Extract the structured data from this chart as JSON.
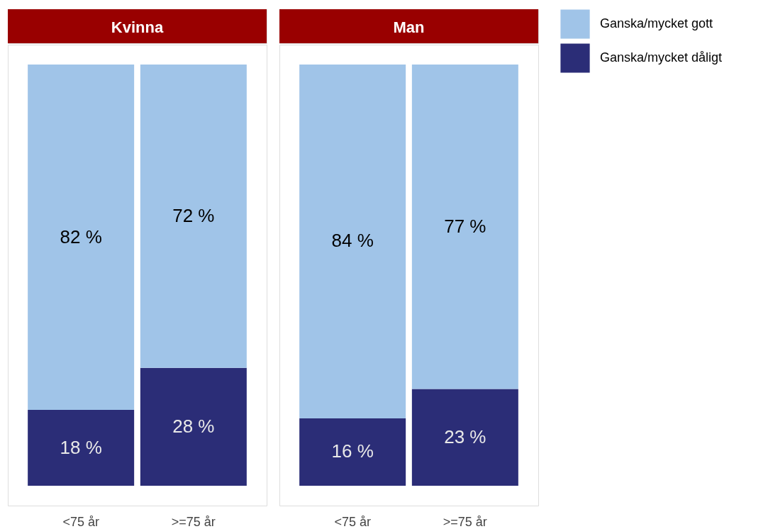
{
  "chart_data": [
    {
      "type": "bar",
      "title": "Kvinna",
      "categories": [
        "<75 år",
        ">=75 år"
      ],
      "stacked": true,
      "data_labels": true,
      "tick_labels": "x",
      "legend": false,
      "series": [
        {
          "color": "#2b2d77",
          "values": [
            18,
            28
          ],
          "value_labels": [
            "18 %",
            "28 %"
          ]
        },
        {
          "color": "#a0c4e8",
          "values": [
            82,
            72
          ],
          "value_labels": [
            "82 %",
            "72 %"
          ]
        }
      ]
    },
    {
      "type": "bar",
      "title": "Man",
      "categories": [
        "<75 år",
        ">=75 år"
      ],
      "stacked": true,
      "data_labels": true,
      "tick_labels": "x",
      "legend": "right",
      "series": [
        {
          "name": "Ganska/mycket dåligt",
          "color": "#2b2d77",
          "values": [
            16,
            23
          ],
          "value_labels": [
            "16 %",
            "23 %"
          ]
        },
        {
          "name": "Ganska/mycket gott",
          "color": "#a0c4e8",
          "values": [
            84,
            77
          ],
          "value_labels": [
            "84 %",
            "77 %"
          ]
        }
      ]
    }
  ]
}
